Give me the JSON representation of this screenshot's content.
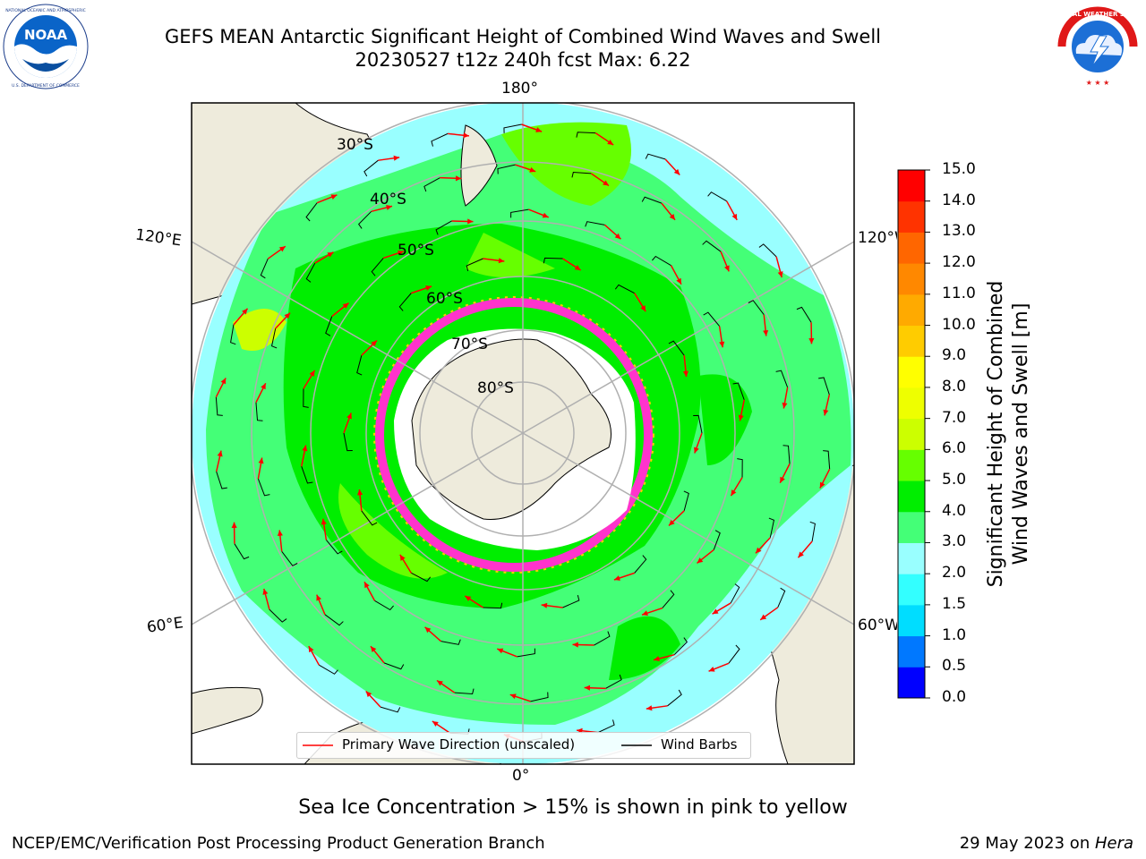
{
  "title": {
    "line1": "GEFS MEAN Antarctic Significant Height of Combined Wind Waves and Swell",
    "line2": "20230527 t12z 240h fcst   Max: 6.22"
  },
  "logos": {
    "left": {
      "name": "NOAA",
      "ring_text": "NATIONAL OCEANIC AND ATMOSPHERIC ADMINISTRATION · U.S. DEPARTMENT OF COMMERCE"
    },
    "right": {
      "name": "NATIONAL WEATHER SERVICE"
    }
  },
  "map": {
    "projection": "south-polar-stereographic",
    "longitude_labels": {
      "top": "180°",
      "bottom": "0°",
      "left_upper": "120°E",
      "left_lower": "60°E",
      "right_upper": "120°W",
      "right_lower": "60°W"
    },
    "latitude_labels": [
      "30°S",
      "40°S",
      "50°S",
      "60°S",
      "70°S",
      "80°S"
    ],
    "colors": {
      "land": "#eeebdc",
      "antarctica_ice": "#ffffff",
      "sea_ice_edge": "#ff33cc",
      "gridline": "#b0b0b0",
      "wave_arrow": "#ff0000",
      "wind_barb": "#000000"
    }
  },
  "legend": {
    "primary_wave": "Primary Wave Direction (unscaled)",
    "wind_barbs": "Wind Barbs"
  },
  "colorbar": {
    "label_line1": "Significant Height of Combined",
    "label_line2": "Wind Waves and Swell [m]",
    "ticks": [
      "0.0",
      "0.5",
      "1.0",
      "1.5",
      "2.0",
      "3.0",
      "4.0",
      "5.0",
      "6.0",
      "7.0",
      "8.0",
      "9.0",
      "10.0",
      "11.0",
      "12.0",
      "13.0",
      "14.0",
      "15.0"
    ],
    "colors": [
      "#0000ff",
      "#0078ff",
      "#00ddff",
      "#33ffff",
      "#99ffff",
      "#44ff77",
      "#00ee00",
      "#66ff00",
      "#ccff00",
      "#eeff00",
      "#ffff00",
      "#ffcc00",
      "#ffaa00",
      "#ff8800",
      "#ff6600",
      "#ff3300",
      "#ff0000"
    ]
  },
  "notes": {
    "sea_ice": "Sea Ice Concentration > 15% is shown in pink to yellow"
  },
  "footer": {
    "left": "NCEP/EMC/Verification Post Processing Product Generation Branch",
    "right_date": "29 May 2023 on ",
    "right_host": "Hera"
  }
}
